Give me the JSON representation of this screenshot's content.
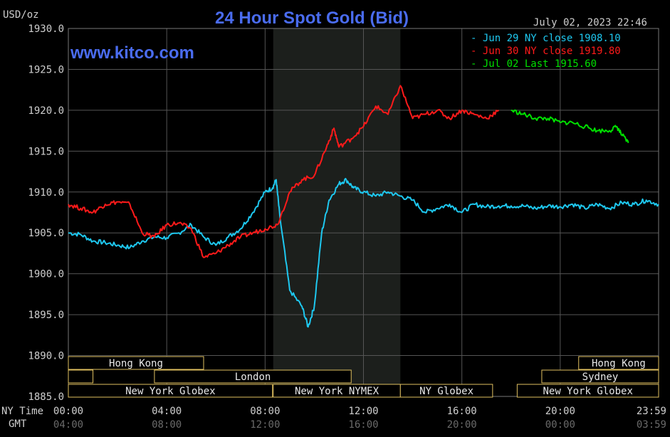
{
  "header": {
    "unit": "USD/oz",
    "title": "24 Hour Spot Gold (Bid)",
    "timestamp": "July 02, 2023 22:46",
    "watermark": "www.kitco.com"
  },
  "colors": {
    "background": "#000000",
    "grid": "#555555",
    "text": "#cfcfcf",
    "title": "#4a6cf0",
    "jun29": "#1ec8f0",
    "jun30": "#ff1a1a",
    "jul02": "#00e000",
    "session_shade": "#1c1f1c",
    "market_bar_fill": "#000000",
    "market_bar_border": "#e0c060"
  },
  "row_labels": {
    "ny_time": "NY Time",
    "gmt": "GMT"
  },
  "chart_data": {
    "type": "line",
    "title": "24 Hour Spot Gold (Bid)",
    "ylabel": "USD/oz",
    "ylim": [
      1885,
      1930
    ],
    "xlim": [
      0,
      24
    ],
    "grid": true,
    "legend_position": "top-right",
    "y_ticks": [
      "1930.0",
      "1925.0",
      "1920.0",
      "1915.0",
      "1910.0",
      "1905.0",
      "1900.0",
      "1895.0",
      "1890.0",
      "1885.0"
    ],
    "x_ticks": [
      {
        "x": 0,
        "ny": "00:00",
        "gmt": "04:00"
      },
      {
        "x": 4,
        "ny": "04:00",
        "gmt": "08:00"
      },
      {
        "x": 8,
        "ny": "08:00",
        "gmt": "12:00"
      },
      {
        "x": 12,
        "ny": "12:00",
        "gmt": "16:00"
      },
      {
        "x": 16,
        "ny": "16:00",
        "gmt": "20:00"
      },
      {
        "x": 20,
        "ny": "20:00",
        "gmt": "00:00"
      },
      {
        "x": 23.98,
        "ny": "23:59",
        "gmt": "03:59"
      }
    ],
    "shaded_sessions": [
      [
        8.33,
        13.5
      ]
    ],
    "series": [
      {
        "name": "Jun 29 NY close 1908.10",
        "color": "#1ec8f0",
        "x": [
          0,
          0.5,
          1,
          1.5,
          2,
          2.5,
          3,
          3.5,
          4,
          4.5,
          5,
          5.5,
          6,
          6.5,
          7,
          7.5,
          8,
          8.3,
          8.45,
          8.6,
          9,
          9.5,
          9.75,
          10,
          10.3,
          10.6,
          11,
          11.3,
          11.6,
          12,
          12.5,
          13,
          13.5,
          14,
          14.5,
          15,
          15.5,
          16,
          16.5,
          17,
          17.5,
          18,
          18.5,
          19,
          19.5,
          20,
          20.5,
          21,
          21.5,
          22,
          22.5,
          23,
          23.5,
          24
        ],
        "y": [
          1905.0,
          1904.8,
          1904.0,
          1903.8,
          1903.5,
          1903.2,
          1904.0,
          1904.5,
          1904.4,
          1905.0,
          1906.0,
          1904.5,
          1903.5,
          1904.5,
          1905.5,
          1907.5,
          1910.0,
          1910.5,
          1911.5,
          1907.0,
          1898.0,
          1896.0,
          1893.5,
          1896.0,
          1905.0,
          1909.0,
          1911.0,
          1911.5,
          1910.5,
          1910.0,
          1909.5,
          1910.0,
          1909.5,
          1909.0,
          1907.5,
          1908.0,
          1908.5,
          1907.5,
          1908.5,
          1908.2,
          1908.3,
          1908.3,
          1908.3,
          1908.0,
          1908.3,
          1908.2,
          1908.5,
          1908.0,
          1908.5,
          1908.0,
          1908.7,
          1908.5,
          1909.0,
          1908.5
        ]
      },
      {
        "name": "Jun 30 NY close 1919.80",
        "color": "#ff1a1a",
        "x": [
          0,
          0.5,
          1,
          1.5,
          2,
          2.5,
          3,
          3.5,
          4,
          4.5,
          5,
          5.5,
          6,
          6.5,
          7,
          7.5,
          8,
          8.5,
          9,
          9.5,
          10,
          10.5,
          10.8,
          11,
          11.5,
          12,
          12.5,
          13,
          13.5,
          14,
          14.5,
          15,
          15.5,
          16,
          16.5,
          17,
          17.5
        ],
        "y": [
          1908.5,
          1908.0,
          1907.5,
          1908.5,
          1908.8,
          1908.5,
          1905.0,
          1904.5,
          1906.0,
          1906.2,
          1905.5,
          1902.0,
          1902.5,
          1903.5,
          1904.5,
          1905.0,
          1905.5,
          1906.0,
          1910.0,
          1911.5,
          1912.0,
          1915.5,
          1917.8,
          1915.5,
          1916.5,
          1918.0,
          1920.5,
          1919.5,
          1923.0,
          1919.0,
          1919.5,
          1920.0,
          1919.0,
          1920.0,
          1919.5,
          1919.0,
          1920.0
        ]
      },
      {
        "name": "Jul 02 Last 1915.60",
        "color": "#00e000",
        "x": [
          18,
          18.5,
          19,
          19.5,
          20,
          20.5,
          21,
          21.5,
          22,
          22.3,
          22.5,
          22.77
        ],
        "y": [
          1920.0,
          1919.5,
          1919.0,
          1919.0,
          1918.5,
          1918.5,
          1918.0,
          1917.5,
          1917.5,
          1918.0,
          1917.0,
          1916.0
        ]
      }
    ],
    "market_bars": [
      {
        "label": "Hong Kong",
        "row": 0,
        "start": 0,
        "end": 5.5
      },
      {
        "label": "",
        "row": 1,
        "start": 0,
        "end": 1
      },
      {
        "label": "London",
        "row": 1,
        "start": 3.5,
        "end": 11.5
      },
      {
        "label": "New York Globex",
        "row": 2,
        "start": 0,
        "end": 8.3
      },
      {
        "label": "New York NYMEX",
        "row": 2,
        "start": 8.33,
        "end": 13.5
      },
      {
        "label": "NY Globex",
        "row": 2,
        "start": 13.5,
        "end": 17.25
      },
      {
        "label": "Hong Kong",
        "row": 0,
        "start": 20.75,
        "end": 24
      },
      {
        "label": "Sydney",
        "row": 1,
        "start": 19.25,
        "end": 24
      },
      {
        "label": "New York Globex",
        "row": 2,
        "start": 18.25,
        "end": 24
      }
    ]
  }
}
